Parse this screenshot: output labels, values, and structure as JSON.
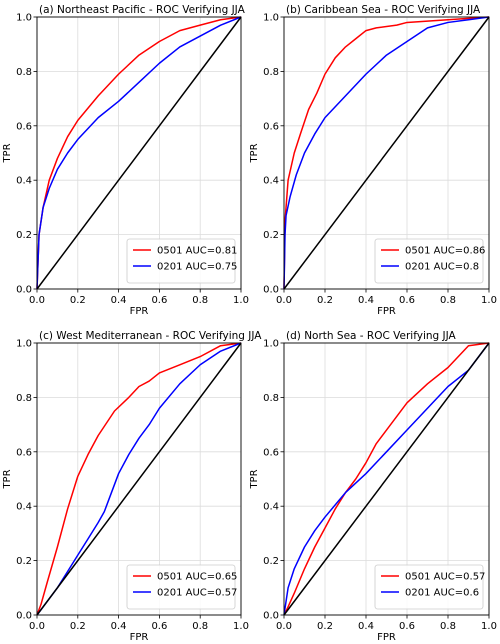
{
  "chart_data": [
    {
      "type": "line",
      "title": "(a) Northeast Pacific - ROC Verifying JJA",
      "xlabel": "FPR",
      "ylabel": "TPR",
      "xlim": [
        0,
        1
      ],
      "ylim": [
        0,
        1
      ],
      "xticks": [
        "0.0",
        "0.2",
        "0.4",
        "0.6",
        "0.8",
        "1.0"
      ],
      "yticks": [
        "0.0",
        "0.2",
        "0.4",
        "0.6",
        "0.8",
        "1.0"
      ],
      "grid": true,
      "legend_position": "lower-right",
      "series": [
        {
          "name": "0501 AUC=0.81",
          "color": "#ff0000",
          "x": [
            0,
            0.01,
            0.03,
            0.06,
            0.1,
            0.15,
            0.2,
            0.3,
            0.4,
            0.5,
            0.6,
            0.7,
            0.8,
            0.9,
            1.0
          ],
          "y": [
            0,
            0.2,
            0.3,
            0.4,
            0.48,
            0.56,
            0.62,
            0.71,
            0.79,
            0.86,
            0.91,
            0.95,
            0.97,
            0.99,
            1.0
          ]
        },
        {
          "name": "0201 AUC=0.75",
          "color": "#0000ff",
          "x": [
            0,
            0.01,
            0.03,
            0.06,
            0.1,
            0.15,
            0.2,
            0.3,
            0.4,
            0.5,
            0.6,
            0.7,
            0.8,
            0.9,
            1.0
          ],
          "y": [
            0,
            0.2,
            0.3,
            0.37,
            0.44,
            0.5,
            0.55,
            0.63,
            0.69,
            0.76,
            0.83,
            0.89,
            0.93,
            0.97,
            1.0
          ]
        },
        {
          "name": "",
          "color": "#000000",
          "x": [
            0,
            1
          ],
          "y": [
            0,
            1
          ]
        }
      ]
    },
    {
      "type": "line",
      "title": "(b) Caribbean Sea - ROC Verifying JJA",
      "xlabel": "FPR",
      "ylabel": "TPR",
      "xlim": [
        0,
        1
      ],
      "ylim": [
        0,
        1
      ],
      "xticks": [
        "0.0",
        "0.2",
        "0.4",
        "0.6",
        "0.8",
        "1.0"
      ],
      "yticks": [
        "0.0",
        "0.2",
        "0.4",
        "0.6",
        "0.8",
        "1.0"
      ],
      "grid": true,
      "legend_position": "lower-right",
      "series": [
        {
          "name": "0501 AUC=0.86",
          "color": "#ff0000",
          "x": [
            0,
            0.005,
            0.02,
            0.05,
            0.08,
            0.12,
            0.16,
            0.2,
            0.25,
            0.3,
            0.35,
            0.4,
            0.45,
            0.55,
            0.6,
            0.7,
            0.8,
            0.9,
            1.0
          ],
          "y": [
            0,
            0.25,
            0.4,
            0.5,
            0.57,
            0.66,
            0.72,
            0.79,
            0.85,
            0.89,
            0.92,
            0.95,
            0.96,
            0.97,
            0.98,
            0.985,
            0.99,
            0.995,
            1.0
          ]
        },
        {
          "name": "0201 AUC=0.8",
          "color": "#0000ff",
          "x": [
            0,
            0.005,
            0.01,
            0.03,
            0.06,
            0.1,
            0.15,
            0.2,
            0.3,
            0.4,
            0.5,
            0.6,
            0.7,
            0.8,
            0.9,
            1.0
          ],
          "y": [
            0,
            0.2,
            0.27,
            0.34,
            0.42,
            0.5,
            0.57,
            0.63,
            0.71,
            0.79,
            0.86,
            0.91,
            0.96,
            0.98,
            0.99,
            1.0
          ]
        },
        {
          "name": "",
          "color": "#000000",
          "x": [
            0,
            1
          ],
          "y": [
            0,
            1
          ]
        }
      ]
    },
    {
      "type": "line",
      "title": "(c) West Mediterranean - ROC Verifying JJA",
      "xlabel": "FPR",
      "ylabel": "TPR",
      "xlim": [
        0,
        1
      ],
      "ylim": [
        0,
        1
      ],
      "xticks": [
        "0.0",
        "0.2",
        "0.4",
        "0.6",
        "0.8",
        "1.0"
      ],
      "yticks": [
        "0.0",
        "0.2",
        "0.4",
        "0.6",
        "0.8",
        "1.0"
      ],
      "grid": true,
      "legend_position": "lower-right",
      "series": [
        {
          "name": "0501 AUC=0.65",
          "color": "#ff0000",
          "x": [
            0,
            0.02,
            0.05,
            0.1,
            0.15,
            0.2,
            0.25,
            0.3,
            0.38,
            0.45,
            0.5,
            0.55,
            0.6,
            0.7,
            0.8,
            0.9,
            1.0
          ],
          "y": [
            0,
            0.04,
            0.12,
            0.25,
            0.39,
            0.51,
            0.59,
            0.66,
            0.75,
            0.8,
            0.84,
            0.86,
            0.89,
            0.92,
            0.95,
            0.99,
            1.0
          ]
        },
        {
          "name": "0201 AUC=0.57",
          "color": "#0000ff",
          "x": [
            0,
            0.05,
            0.1,
            0.15,
            0.2,
            0.25,
            0.3,
            0.33,
            0.36,
            0.4,
            0.45,
            0.5,
            0.55,
            0.6,
            0.7,
            0.8,
            0.9,
            1.0
          ],
          "y": [
            0,
            0.05,
            0.1,
            0.16,
            0.22,
            0.28,
            0.34,
            0.38,
            0.44,
            0.52,
            0.59,
            0.65,
            0.7,
            0.76,
            0.85,
            0.92,
            0.97,
            1.0
          ]
        },
        {
          "name": "",
          "color": "#000000",
          "x": [
            0,
            1
          ],
          "y": [
            0,
            1
          ]
        }
      ]
    },
    {
      "type": "line",
      "title": "(d) North Sea - ROC Verifying JJA",
      "xlabel": "FPR",
      "ylabel": "TPR",
      "xlim": [
        0,
        1
      ],
      "ylim": [
        0,
        1
      ],
      "xticks": [
        "0.0",
        "0.2",
        "0.4",
        "0.6",
        "0.8",
        "1.0"
      ],
      "yticks": [
        "0.0",
        "0.2",
        "0.4",
        "0.6",
        "0.8",
        "1.0"
      ],
      "grid": true,
      "legend_position": "lower-right",
      "series": [
        {
          "name": "0501 AUC=0.57",
          "color": "#ff0000",
          "x": [
            0,
            0.02,
            0.05,
            0.1,
            0.15,
            0.2,
            0.25,
            0.3,
            0.35,
            0.4,
            0.45,
            0.5,
            0.6,
            0.7,
            0.8,
            0.85,
            0.9,
            1.0
          ],
          "y": [
            0,
            0.03,
            0.08,
            0.17,
            0.25,
            0.32,
            0.39,
            0.45,
            0.5,
            0.56,
            0.63,
            0.68,
            0.78,
            0.85,
            0.91,
            0.95,
            0.99,
            1.0
          ]
        },
        {
          "name": "0201 AUC=0.6",
          "color": "#0000ff",
          "x": [
            0,
            0.02,
            0.05,
            0.1,
            0.15,
            0.2,
            0.3,
            0.4,
            0.5,
            0.6,
            0.7,
            0.8,
            0.9,
            1.0
          ],
          "y": [
            0,
            0.1,
            0.17,
            0.25,
            0.31,
            0.36,
            0.45,
            0.52,
            0.6,
            0.68,
            0.76,
            0.84,
            0.9,
            1.0
          ]
        },
        {
          "name": "",
          "color": "#000000",
          "x": [
            0,
            1
          ],
          "y": [
            0,
            1
          ]
        }
      ]
    }
  ]
}
